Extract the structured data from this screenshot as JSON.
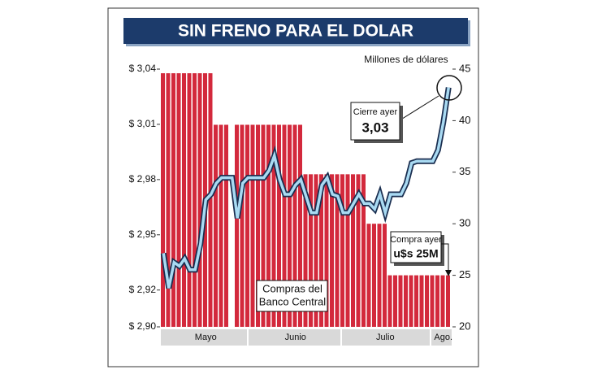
{
  "chart_data": {
    "type": "bar",
    "title": "SIN FRENO PARA EL DOLAR",
    "y2label": "Millones de dólares",
    "categories": [
      null,
      null,
      null,
      null,
      null,
      null,
      null,
      null,
      "Mayo",
      null,
      null,
      null,
      null,
      null,
      null,
      null,
      null,
      null,
      null,
      null,
      null,
      null,
      null,
      null,
      null,
      "Junio",
      null,
      null,
      null,
      null,
      null,
      null,
      null,
      null,
      null,
      null,
      null,
      null,
      null,
      null,
      null,
      null,
      "Julio",
      null,
      null,
      null,
      null,
      null,
      null,
      null,
      null,
      null,
      null,
      "Ago.",
      null
    ],
    "series": [
      {
        "name": "Compras del Banco Central",
        "type": "bar",
        "axis": "y2",
        "color": "#d3293c",
        "values": [
          44.6,
          44.6,
          44.6,
          44.6,
          44.6,
          44.6,
          44.6,
          44.6,
          44.6,
          44.6,
          39.6,
          39.6,
          39.6,
          null,
          39.6,
          39.6,
          39.6,
          39.6,
          39.6,
          39.6,
          39.6,
          39.6,
          39.6,
          39.6,
          39.6,
          39.6,
          39.6,
          34.8,
          34.8,
          34.8,
          34.8,
          34.8,
          34.8,
          34.8,
          34.8,
          34.8,
          34.8,
          34.8,
          34.8,
          30,
          30,
          30,
          30,
          25,
          25,
          25,
          25,
          25,
          25,
          25,
          25,
          25,
          25,
          25,
          25
        ]
      },
      {
        "type": "line",
        "axis": "y",
        "color": "#a9daf2",
        "values": [
          2.94,
          2.921,
          2.935,
          2.933,
          2.937,
          2.931,
          2.931,
          2.945,
          2.969,
          2.972,
          2.978,
          2.981,
          2.981,
          2.981,
          2.959,
          2.978,
          2.981,
          2.981,
          2.981,
          2.981,
          2.985,
          2.993,
          2.98,
          2.972,
          2.972,
          2.977,
          2.98,
          2.971,
          2.962,
          2.962,
          2.977,
          2.981,
          2.972,
          2.971,
          2.962,
          2.962,
          2.967,
          2.972,
          2.967,
          2.967,
          2.964,
          2.972,
          2.962,
          2.972,
          2.972,
          2.972,
          2.978,
          2.989,
          2.99,
          2.99,
          2.99,
          2.99,
          2.996,
          3.011,
          3.03
        ]
      }
    ],
    "ylim": [
      2.9,
      3.04
    ],
    "yticks": [
      {
        "value": 3.04,
        "label": "$ 3,04"
      },
      {
        "value": 3.01,
        "label": "$ 3,01"
      },
      {
        "value": 2.98,
        "label": "$ 2,98"
      },
      {
        "value": 2.95,
        "label": "$ 2,95"
      },
      {
        "value": 2.92,
        "label": "$ 2,92"
      },
      {
        "value": 2.9,
        "label": "$ 2,90"
      }
    ],
    "y2lim": [
      20,
      45
    ],
    "y2ticks": [
      45,
      40,
      35,
      30,
      25,
      20
    ],
    "grid": false,
    "annotations": {
      "cierre_label": "Cierre ayer",
      "cierre_value": "3,03",
      "compra_label": "Compra ayer",
      "compra_value": "u$s 25M",
      "compras_line1": "Compras del",
      "compras_line2": "Banco Central"
    }
  }
}
